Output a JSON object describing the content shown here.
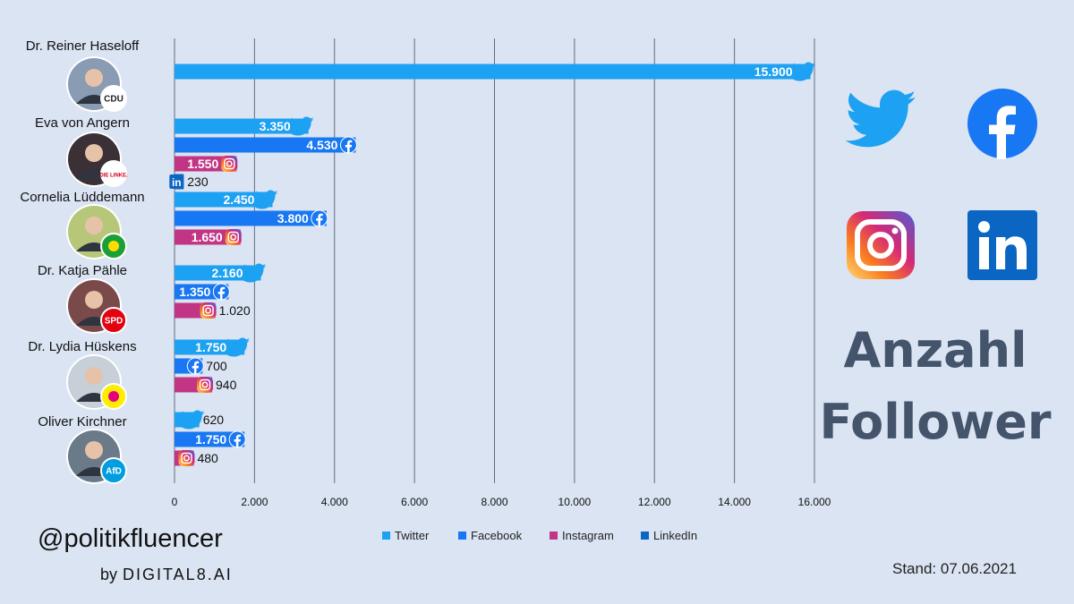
{
  "colors": {
    "twitter": "#1da1f2",
    "facebook": "#1877f2",
    "instagram": "#c13584",
    "linkedin": "#0a66c2",
    "background": "#dbe4f3",
    "title": "#44546a"
  },
  "chart_data": {
    "type": "bar",
    "orientation": "horizontal",
    "xlim": [
      0,
      16000
    ],
    "x_ticks": [
      "0",
      "2.000",
      "4.000",
      "6.000",
      "8.000",
      "10.000",
      "12.000",
      "14.000",
      "16.000"
    ],
    "grid": true,
    "legend_position": "bottom",
    "legend": [
      "Twitter",
      "Facebook",
      "Instagram",
      "LinkedIn"
    ],
    "politicians": [
      {
        "name": "Dr. Reiner Haseloff",
        "party": "CDU",
        "party_badge": "CDU",
        "bars": [
          {
            "platform": "twitter",
            "value": 15900,
            "label": "15.900"
          }
        ]
      },
      {
        "name": "Eva von Angern",
        "party": "DIE LINKE.",
        "party_badge": "DIE LINKE.",
        "bars": [
          {
            "platform": "twitter",
            "value": 3350,
            "label": "3.350"
          },
          {
            "platform": "facebook",
            "value": 4530,
            "label": "4.530"
          },
          {
            "platform": "instagram",
            "value": 1550,
            "label": "1.550"
          },
          {
            "platform": "linkedin",
            "value": 230,
            "label": "230"
          }
        ]
      },
      {
        "name": "Cornelia Lüddemann",
        "party": "Bündnis 90/Die Grünen",
        "party_badge": "",
        "bars": [
          {
            "platform": "twitter",
            "value": 2450,
            "label": "2.450"
          },
          {
            "platform": "facebook",
            "value": 3800,
            "label": "3.800"
          },
          {
            "platform": "instagram",
            "value": 1650,
            "label": "1.650"
          }
        ]
      },
      {
        "name": "Dr. Katja Pähle",
        "party": "SPD",
        "party_badge": "SPD",
        "bars": [
          {
            "platform": "twitter",
            "value": 2160,
            "label": "2.160"
          },
          {
            "platform": "facebook",
            "value": 1350,
            "label": "1.350"
          },
          {
            "platform": "instagram",
            "value": 1020,
            "label": "1.020"
          }
        ]
      },
      {
        "name": "Dr. Lydia Hüskens",
        "party": "FDP",
        "party_badge": "",
        "bars": [
          {
            "platform": "twitter",
            "value": 1750,
            "label": "1.750"
          },
          {
            "platform": "facebook",
            "value": 700,
            "label": "700"
          },
          {
            "platform": "instagram",
            "value": 940,
            "label": "940"
          }
        ]
      },
      {
        "name": "Oliver Kirchner",
        "party": "AfD",
        "party_badge": "AfD",
        "bars": [
          {
            "platform": "twitter",
            "value": 620,
            "label": "620"
          },
          {
            "platform": "facebook",
            "value": 1750,
            "label": "1.750"
          },
          {
            "platform": "instagram",
            "value": 480,
            "label": "480"
          }
        ]
      }
    ]
  },
  "title_line1": "Anzahl",
  "title_line2": "Follower",
  "handle": "@politikfluencer",
  "byline_by": "by",
  "byline_brand": "DIGITAL8.AI",
  "stand": "Stand: 07.06.2021",
  "icons": [
    "twitter-icon",
    "facebook-icon",
    "instagram-icon",
    "linkedin-icon"
  ]
}
